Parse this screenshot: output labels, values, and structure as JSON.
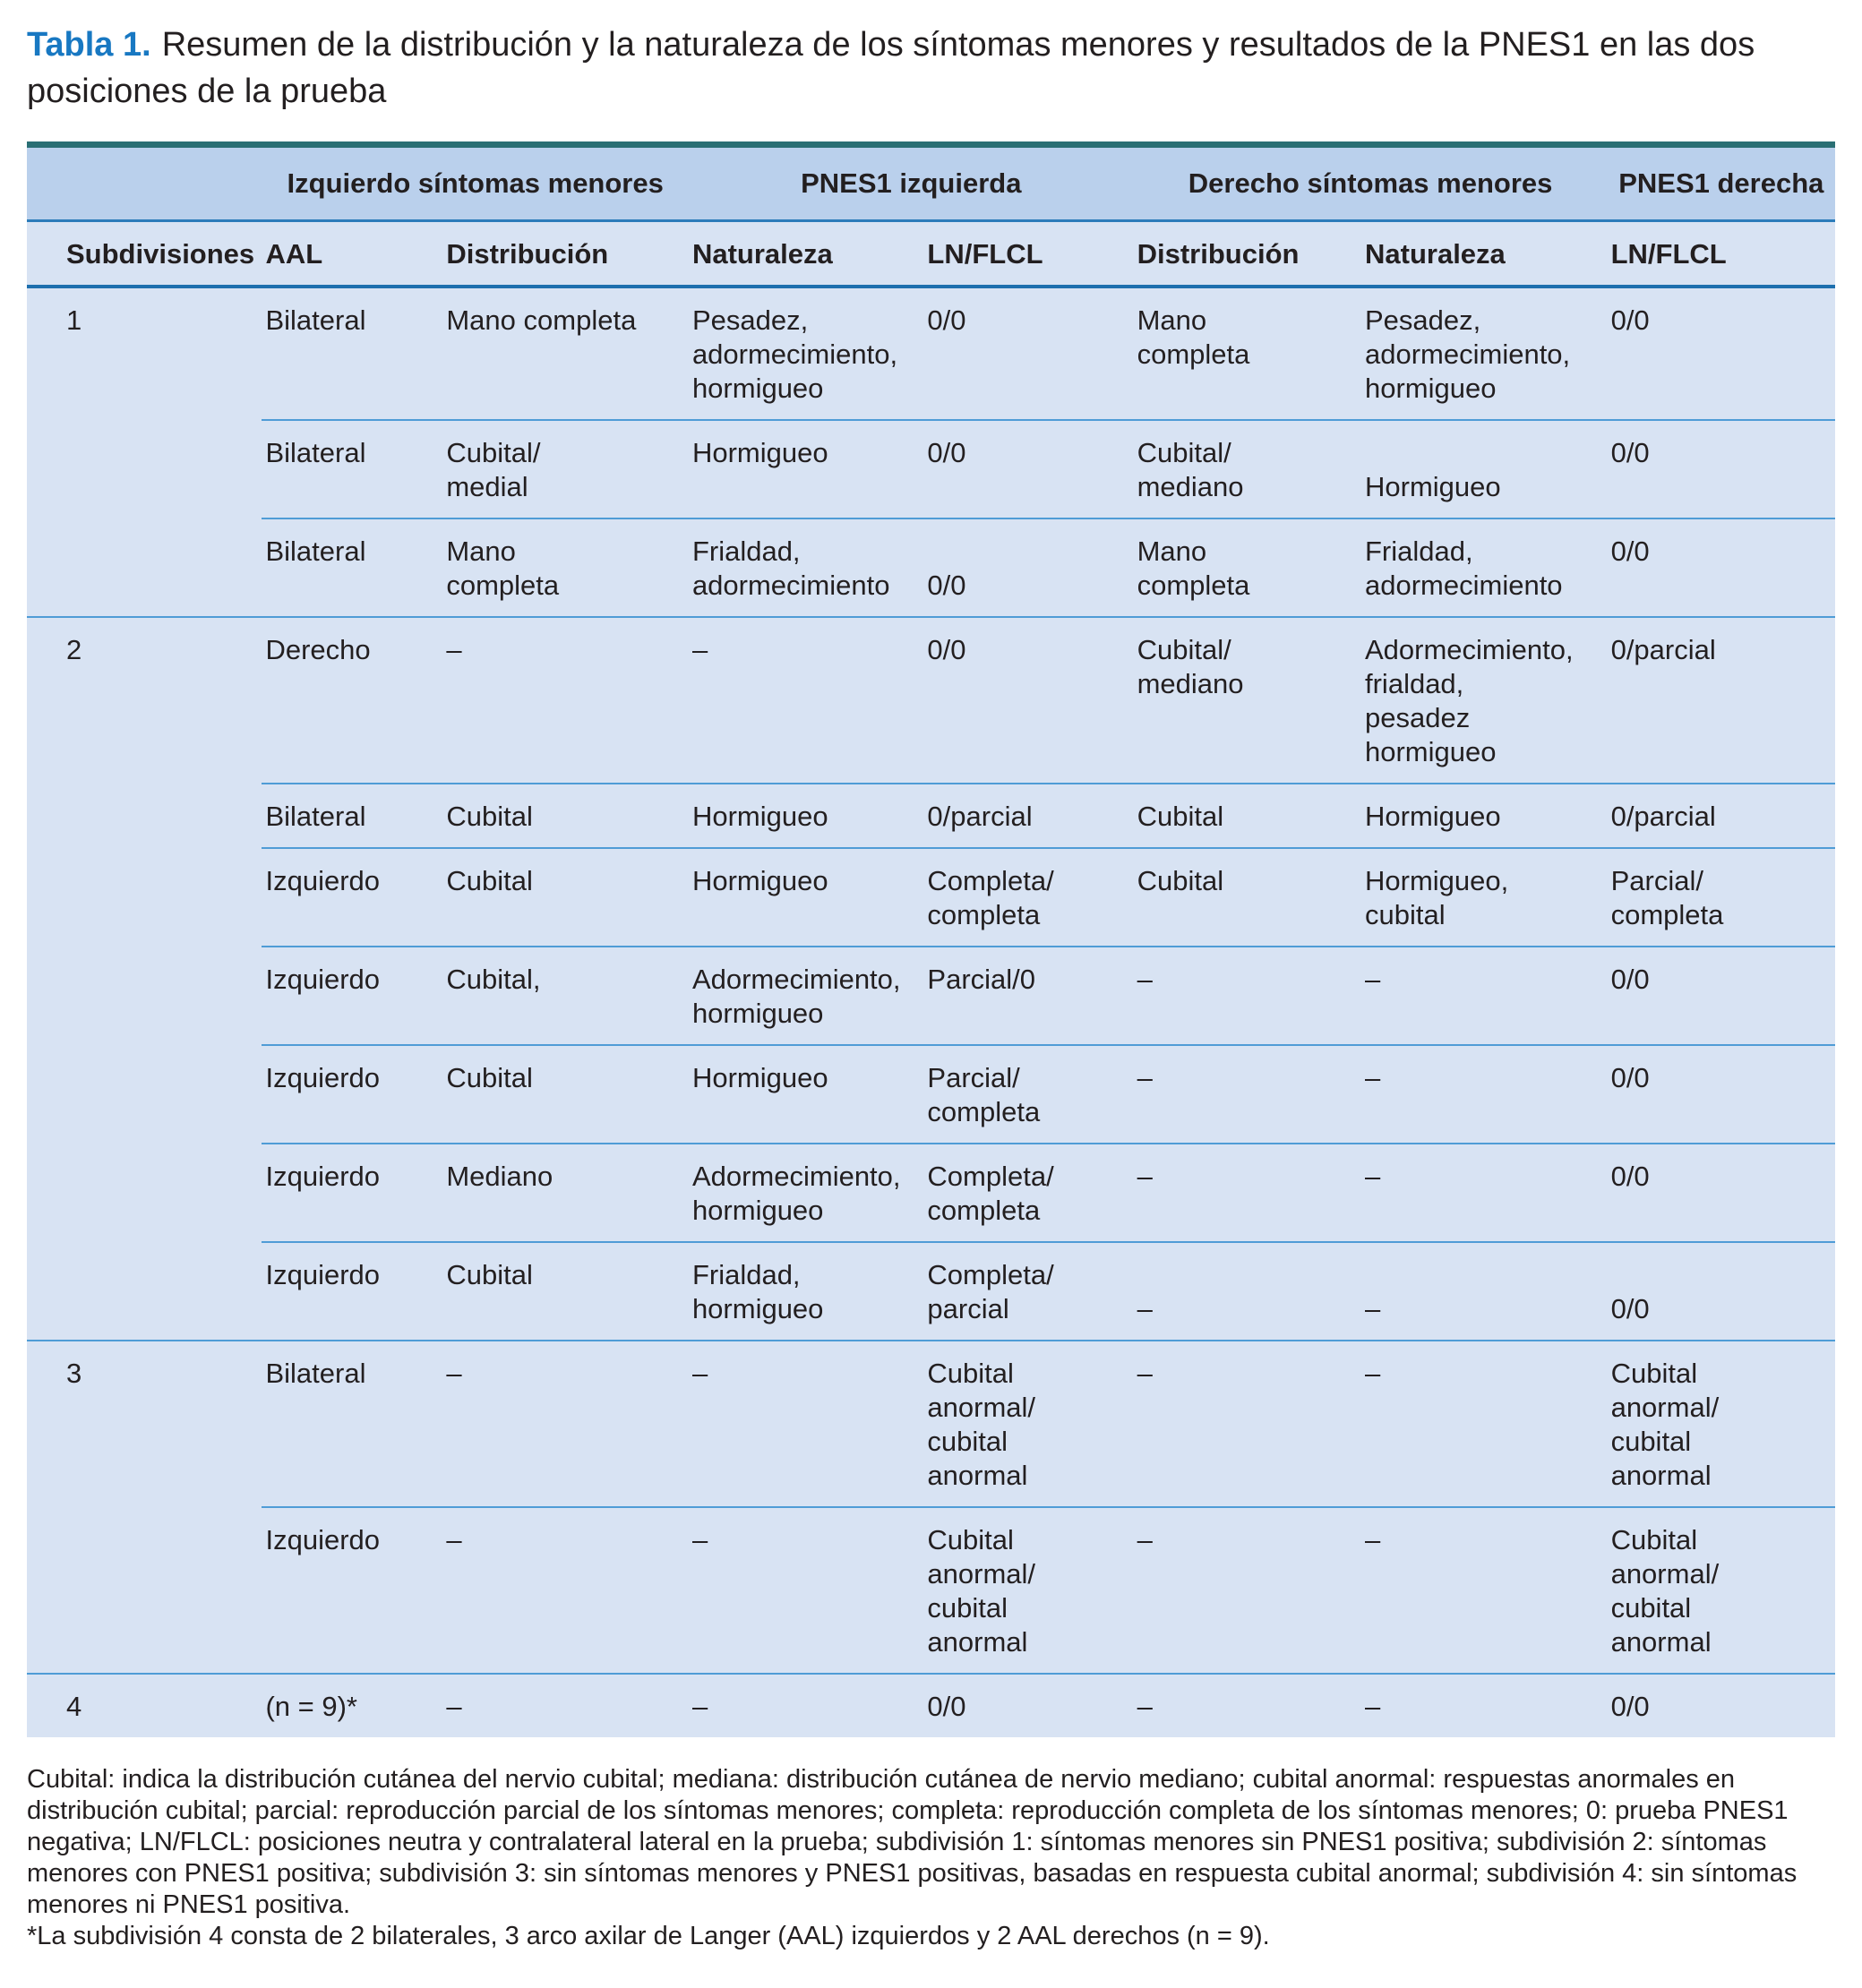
{
  "title": {
    "tag": "Tabla 1.",
    "text": "Resumen de la distribución y la naturaleza de los síntomas menores y resultados de la PNES1 en las dos posiciones de la prueba"
  },
  "colors": {
    "accent_teal": "#2a6f74",
    "group_header_blue": "#bad0ec",
    "body_blue": "#d8e3f3",
    "rule_blue": "#4f9cd6",
    "header_rule_blue": "#1d6fae",
    "title_blue": "#1878c2"
  },
  "table": {
    "group_headers": [
      {
        "label": "",
        "span": 1
      },
      {
        "label": "Izquierdo síntomas menores",
        "span": 2
      },
      {
        "label": "PNES1 izquierda",
        "span": 2
      },
      {
        "label": "Derecho síntomas menores",
        "span": 2
      },
      {
        "label": "PNES1 derecha",
        "span": 1
      }
    ],
    "column_headers": [
      "Subdivisiones",
      "AAL",
      "Distribución",
      "Naturaleza",
      "LN/FLCL",
      "Distribución",
      "Naturaleza",
      "LN/FLCL"
    ],
    "rows": [
      {
        "subdivision": "1",
        "sep": "none",
        "cells": [
          "Bilateral",
          "Mano completa",
          "Pesadez,\nadormecimiento,\nhormigueo",
          "0/0",
          "Mano\ncompleta",
          "Pesadez,\nadormecimiento,\nhormigueo",
          "0/0"
        ]
      },
      {
        "subdivision": "",
        "sep": "inner",
        "cells": [
          "Bilateral",
          "Cubital/\nmedial",
          "Hormigueo",
          "0/0",
          "Cubital/\nmediano",
          "\nHormigueo",
          "0/0"
        ]
      },
      {
        "subdivision": "",
        "sep": "inner",
        "cells": [
          "Bilateral",
          "Mano\ncompleta",
          "Frialdad,\nadormecimiento",
          "\n0/0",
          "Mano\ncompleta",
          "Frialdad,\nadormecimiento",
          "0/0"
        ]
      },
      {
        "subdivision": "2",
        "sep": "section",
        "cells": [
          "Derecho",
          "–",
          "–",
          "0/0",
          "Cubital/\nmediano",
          "Adormecimiento,\nfrialdad,\npesadez\nhormigueo",
          "0/parcial"
        ]
      },
      {
        "subdivision": "",
        "sep": "inner",
        "cells": [
          "Bilateral",
          "Cubital",
          "Hormigueo",
          "0/parcial",
          "Cubital",
          "Hormigueo",
          "0/parcial"
        ]
      },
      {
        "subdivision": "",
        "sep": "inner",
        "cells": [
          "Izquierdo",
          "Cubital",
          "Hormigueo",
          "Completa/\ncompleta",
          "Cubital",
          "Hormigueo,\ncubital",
          "Parcial/\ncompleta"
        ]
      },
      {
        "subdivision": "",
        "sep": "inner",
        "cells": [
          "Izquierdo",
          "Cubital,",
          "Adormecimiento,\nhormigueo",
          "Parcial/0",
          "–",
          "–",
          "0/0"
        ]
      },
      {
        "subdivision": "",
        "sep": "inner",
        "cells": [
          "Izquierdo",
          "Cubital",
          "Hormigueo",
          "Parcial/\ncompleta",
          "–",
          "–",
          "0/0"
        ]
      },
      {
        "subdivision": "",
        "sep": "inner",
        "cells": [
          "Izquierdo",
          "Mediano",
          "Adormecimiento,\nhormigueo",
          "Completa/\ncompleta",
          "–",
          "–",
          "0/0"
        ]
      },
      {
        "subdivision": "",
        "sep": "inner",
        "cells": [
          "Izquierdo",
          "Cubital",
          "Frialdad,\nhormigueo",
          "Completa/\nparcial",
          "\n–",
          "\n–",
          "\n0/0"
        ]
      },
      {
        "subdivision": "3",
        "sep": "section",
        "cells": [
          "Bilateral",
          "–",
          "–",
          "Cubital\nanormal/\ncubital\nanormal",
          "–",
          "–",
          "Cubital\nanormal/\ncubital\nanormal"
        ]
      },
      {
        "subdivision": "",
        "sep": "inner",
        "cells": [
          "Izquierdo",
          "–",
          "–",
          "Cubital\nanormal/\ncubital\nanormal",
          "–",
          "–",
          "Cubital\nanormal/\ncubital\nanormal"
        ]
      },
      {
        "subdivision": "4",
        "sep": "section",
        "cells": [
          "(n = 9)*",
          "–",
          "–",
          "0/0",
          "–",
          "–",
          "0/0"
        ]
      }
    ]
  },
  "footnotes": {
    "legend": "Cubital: indica la distribución cutánea del nervio cubital; mediana: distribución cutánea de nervio mediano; cubital anormal: respuestas anormales en distribución cubital; parcial: reproducción parcial de los síntomas menores; completa: reproducción completa de los síntomas menores; 0: prueba PNES1 negativa; LN/FLCL: posiciones neutra y contralateral lateral en la prueba; subdivisión 1: síntomas menores sin PNES1 positiva; subdivisión 2: síntomas menores con PNES1 positiva; subdivisión 3: sin síntomas menores y PNES1 positivas, basadas en respuesta cubital anormal; subdivisión 4: sin síntomas menores ni PNES1 positiva.",
    "asterisk": "*La subdivisión 4 consta de 2 bilaterales, 3 arco axilar de Langer (AAL) izquierdos y 2 AAL derechos (n = 9)."
  }
}
